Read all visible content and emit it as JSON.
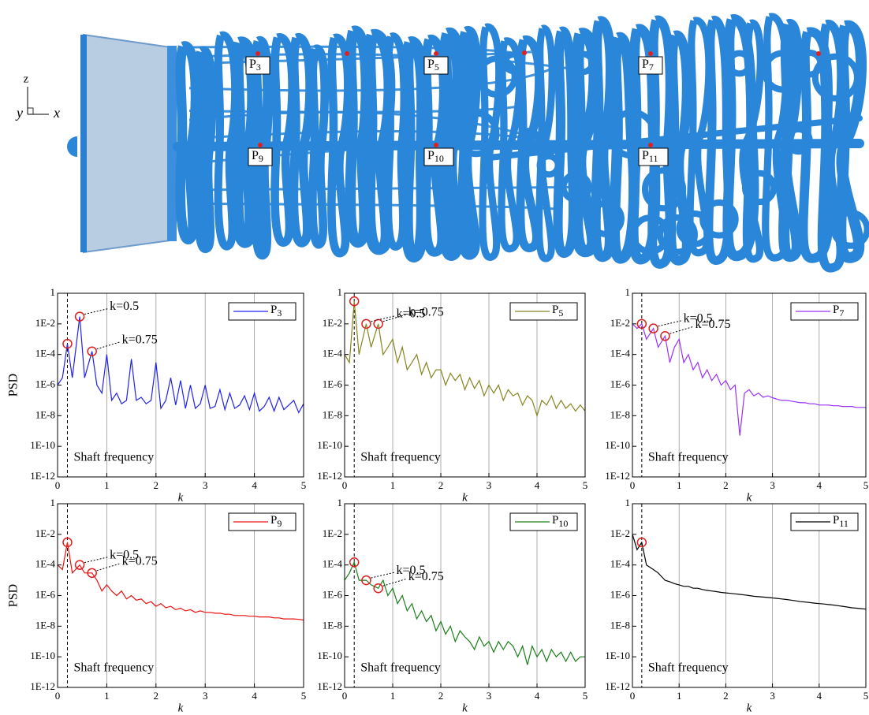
{
  "figure": {
    "axis_labels": {
      "z": "z",
      "y": "y",
      "x": "x"
    },
    "probes": [
      "P3",
      "P5",
      "P7",
      "P9",
      "P10",
      "P11"
    ]
  },
  "chart_data": [
    {
      "type": "line",
      "y_scale": "log",
      "grid": "x",
      "legend": "upper right",
      "xlabel": "k",
      "ylabel": "PSD",
      "xlim": [
        0,
        5
      ],
      "xticks": [
        0,
        1,
        2,
        3,
        4,
        5
      ],
      "ylim": [
        1e-12,
        1
      ],
      "yticks": [
        {
          "value": 1e-12,
          "label": "1E-12"
        },
        {
          "value": 1e-10,
          "label": "1E-10"
        },
        {
          "value": 1e-08,
          "label": "1E-8"
        },
        {
          "value": 1e-06,
          "label": "1E-6"
        },
        {
          "value": 0.0001,
          "label": "1E-4"
        },
        {
          "value": 0.01,
          "label": "1E-2"
        },
        1
      ],
      "reference_line": {
        "x": 0.2,
        "label": "Shaft frequency"
      },
      "annotations": [
        "k=0.5",
        "k=0.75"
      ],
      "x": [
        0,
        0.1,
        0.2,
        0.3,
        0.45,
        0.55,
        0.7,
        0.8,
        0.9,
        1.0,
        1.1,
        1.2,
        1.3,
        1.4,
        1.5,
        1.6,
        1.7,
        1.8,
        1.9,
        2.0,
        2.1,
        2.2,
        2.3,
        2.4,
        2.5,
        2.6,
        2.7,
        2.8,
        2.9,
        3.0,
        3.1,
        3.2,
        3.3,
        3.4,
        3.5,
        3.6,
        3.7,
        3.8,
        3.9,
        4.0,
        4.1,
        4.2,
        4.3,
        4.4,
        4.5,
        4.6,
        4.7,
        4.8,
        4.9,
        5.0
      ],
      "series": [
        {
          "name": "P3",
          "color": "#2222ee",
          "values": [
            1e-06,
            3e-06,
            0.0005,
            3e-06,
            0.03,
            3e-06,
            0.00016,
            1e-06,
            3e-07,
            0.0001,
            1e-07,
            3e-07,
            6e-08,
            1e-07,
            5e-05,
            1e-07,
            1.6e-07,
            6e-08,
            1e-07,
            3e-05,
            3e-08,
            1e-07,
            3e-06,
            5e-08,
            2e-06,
            3e-08,
            1e-06,
            3e-08,
            6e-08,
            1e-06,
            3e-08,
            4e-08,
            5e-07,
            2.5e-08,
            3e-07,
            3e-08,
            5e-08,
            2e-07,
            2.5e-08,
            3e-07,
            2e-08,
            4e-08,
            1.6e-07,
            2e-08,
            1.6e-07,
            2.5e-08,
            5e-08,
            1e-07,
            1.6e-08,
            6e-08
          ]
        }
      ]
    },
    {
      "type": "line",
      "y_scale": "log",
      "grid": "x",
      "legend": "upper right",
      "xlabel": "k",
      "xlim": [
        0,
        5
      ],
      "xticks": [
        0,
        1,
        2,
        3,
        4,
        5
      ],
      "ylim": [
        1e-12,
        1
      ],
      "yticks": [
        {
          "value": 1e-12,
          "label": "1E-12"
        },
        {
          "value": 1e-10,
          "label": "1E-10"
        },
        {
          "value": 1e-08,
          "label": "1E-8"
        },
        {
          "value": 1e-06,
          "label": "1E-6"
        },
        {
          "value": 0.0001,
          "label": "1E-4"
        },
        {
          "value": 0.01,
          "label": "1E-2"
        },
        1
      ],
      "reference_line": {
        "x": 0.2,
        "label": "Shaft frequency"
      },
      "annotations": [
        "k=0.5",
        "k=0.75"
      ],
      "x": [
        0,
        0.1,
        0.2,
        0.3,
        0.45,
        0.55,
        0.7,
        0.8,
        0.9,
        1.0,
        1.1,
        1.2,
        1.3,
        1.4,
        1.5,
        1.6,
        1.7,
        1.8,
        1.9,
        2.0,
        2.1,
        2.2,
        2.3,
        2.4,
        2.5,
        2.6,
        2.7,
        2.8,
        2.9,
        3.0,
        3.1,
        3.2,
        3.3,
        3.4,
        3.5,
        3.6,
        3.7,
        3.8,
        3.9,
        4.0,
        4.1,
        4.2,
        4.3,
        4.4,
        4.5,
        4.6,
        4.7,
        4.8,
        4.9,
        5.0
      ],
      "series": [
        {
          "name": "P5",
          "color": "#858520",
          "values": [
            0.0001,
            3e-05,
            0.3,
            0.0001,
            0.01,
            0.0003,
            0.01,
            0.0001,
            0.0003,
            0.001,
            3e-05,
            0.0003,
            1e-05,
            3e-05,
            0.0001,
            5e-06,
            3e-05,
            3e-06,
            1e-05,
            1e-05,
            1e-06,
            6e-06,
            2e-06,
            5e-06,
            5e-07,
            3e-06,
            6e-07,
            2e-06,
            2e-07,
            1e-06,
            3e-07,
            1e-06,
            1e-07,
            5e-07,
            2e-07,
            3e-07,
            5e-08,
            2e-07,
            1e-07,
            1e-08,
            1e-07,
            5e-08,
            2e-07,
            3e-08,
            1e-07,
            3e-08,
            6e-08,
            2e-08,
            5e-08,
            2e-08
          ]
        }
      ]
    },
    {
      "type": "line",
      "y_scale": "log",
      "grid": "x",
      "legend": "upper right",
      "xlabel": "k",
      "xlim": [
        0,
        5
      ],
      "xticks": [
        0,
        1,
        2,
        3,
        4,
        5
      ],
      "ylim": [
        1e-12,
        1
      ],
      "yticks": [
        {
          "value": 1e-12,
          "label": "1E-12"
        },
        {
          "value": 1e-10,
          "label": "1E-10"
        },
        {
          "value": 1e-08,
          "label": "1E-8"
        },
        {
          "value": 1e-06,
          "label": "1E-6"
        },
        {
          "value": 0.0001,
          "label": "1E-4"
        },
        {
          "value": 0.01,
          "label": "1E-2"
        },
        1
      ],
      "reference_line": {
        "x": 0.2,
        "label": "Shaft frequency"
      },
      "annotations": [
        "k=0.5",
        "k=0.75"
      ],
      "x": [
        0,
        0.1,
        0.2,
        0.3,
        0.45,
        0.55,
        0.7,
        0.8,
        0.9,
        1.0,
        1.1,
        1.2,
        1.3,
        1.4,
        1.5,
        1.6,
        1.7,
        1.8,
        1.9,
        2.0,
        2.1,
        2.2,
        2.3,
        2.4,
        2.5,
        2.6,
        2.7,
        2.8,
        2.9,
        3.0,
        3.1,
        3.2,
        3.3,
        3.4,
        3.5,
        3.6,
        3.7,
        3.8,
        3.9,
        4.0,
        4.1,
        4.2,
        4.3,
        4.4,
        4.5,
        4.6,
        4.7,
        4.8,
        4.9,
        5.0
      ],
      "series": [
        {
          "name": "P7",
          "color": "#9b30ff",
          "values": [
            0.01,
            0.005,
            0.01,
            0.001,
            0.005,
            0.0003,
            0.0016,
            3e-05,
            0.0003,
            0.001,
            3e-05,
            0.0001,
            1e-05,
            3e-05,
            3e-06,
            1e-05,
            2e-06,
            5e-06,
            1e-06,
            2e-06,
            5e-07,
            1e-06,
            5e-10,
            3e-07,
            5e-07,
            2e-07,
            3e-07,
            1.6e-07,
            2e-07,
            1.5e-07,
            1.2e-07,
            1e-07,
            1e-07,
            9e-08,
            8e-08,
            7e-08,
            7e-08,
            6e-08,
            6e-08,
            5e-08,
            5e-08,
            5e-08,
            4.5e-08,
            4.5e-08,
            4e-08,
            4e-08,
            4e-08,
            3.5e-08,
            3.5e-08,
            3.5e-08
          ]
        }
      ]
    },
    {
      "type": "line",
      "y_scale": "log",
      "grid": "x",
      "legend": "upper right",
      "xlabel": "k",
      "ylabel": "PSD",
      "xlim": [
        0,
        5
      ],
      "xticks": [
        0,
        1,
        2,
        3,
        4,
        5
      ],
      "ylim": [
        1e-12,
        1
      ],
      "yticks": [
        {
          "value": 1e-12,
          "label": "1E-12"
        },
        {
          "value": 1e-10,
          "label": "1E-10"
        },
        {
          "value": 1e-08,
          "label": "1E-8"
        },
        {
          "value": 1e-06,
          "label": "1E-6"
        },
        {
          "value": 0.0001,
          "label": "1E-4"
        },
        {
          "value": 0.01,
          "label": "1E-2"
        },
        1
      ],
      "reference_line": {
        "x": 0.2,
        "label": "Shaft frequency"
      },
      "annotations": [
        "k=0.5",
        "k=0.75"
      ],
      "x": [
        0,
        0.1,
        0.2,
        0.3,
        0.45,
        0.55,
        0.7,
        0.8,
        0.9,
        1.0,
        1.1,
        1.2,
        1.3,
        1.4,
        1.5,
        1.6,
        1.7,
        1.8,
        1.9,
        2.0,
        2.1,
        2.2,
        2.3,
        2.4,
        2.5,
        2.6,
        2.7,
        2.8,
        2.9,
        3.0,
        3.1,
        3.2,
        3.3,
        3.4,
        3.5,
        3.6,
        3.7,
        3.8,
        3.9,
        4.0,
        4.1,
        4.2,
        4.3,
        4.4,
        4.5,
        4.6,
        4.7,
        4.8,
        4.9,
        5.0
      ],
      "series": [
        {
          "name": "P9",
          "color": "#ee1111",
          "values": [
            0.0001,
            5e-05,
            0.003,
            3e-05,
            0.0001,
            3e-05,
            3e-05,
            1e-05,
            2e-06,
            5e-06,
            2e-06,
            1e-06,
            2e-06,
            6e-07,
            1e-06,
            5e-07,
            6e-07,
            3e-07,
            4e-07,
            2e-07,
            3e-07,
            1.6e-07,
            2e-07,
            1.2e-07,
            1.5e-07,
            1e-07,
            1.2e-07,
            8e-08,
            1e-07,
            8e-08,
            8e-08,
            7e-08,
            7e-08,
            6e-08,
            6e-08,
            5e-08,
            5e-08,
            5e-08,
            4.5e-08,
            4.5e-08,
            4e-08,
            4e-08,
            4e-08,
            3.5e-08,
            3.5e-08,
            3e-08,
            3e-08,
            3e-08,
            2.8e-08,
            2.5e-08
          ]
        }
      ]
    },
    {
      "type": "line",
      "y_scale": "log",
      "grid": "x",
      "legend": "upper right",
      "xlabel": "k",
      "xlim": [
        0,
        5
      ],
      "xticks": [
        0,
        1,
        2,
        3,
        4,
        5
      ],
      "ylim": [
        1e-12,
        1
      ],
      "yticks": [
        {
          "value": 1e-12,
          "label": "1E-12"
        },
        {
          "value": 1e-10,
          "label": "1E-10"
        },
        {
          "value": 1e-08,
          "label": "1E-8"
        },
        {
          "value": 1e-06,
          "label": "1E-6"
        },
        {
          "value": 0.0001,
          "label": "1E-4"
        },
        {
          "value": 0.01,
          "label": "1E-2"
        },
        1
      ],
      "reference_line": {
        "x": 0.2,
        "label": "Shaft frequency"
      },
      "annotations": [
        "k=0.5",
        "k=0.75"
      ],
      "x": [
        0,
        0.1,
        0.2,
        0.3,
        0.45,
        0.55,
        0.7,
        0.8,
        0.9,
        1.0,
        1.1,
        1.2,
        1.3,
        1.4,
        1.5,
        1.6,
        1.7,
        1.8,
        1.9,
        2.0,
        2.1,
        2.2,
        2.3,
        2.4,
        2.5,
        2.6,
        2.7,
        2.8,
        2.9,
        3.0,
        3.1,
        3.2,
        3.3,
        3.4,
        3.5,
        3.6,
        3.7,
        3.8,
        3.9,
        4.0,
        4.1,
        4.2,
        4.3,
        4.4,
        4.5,
        4.6,
        4.7,
        4.8,
        4.9,
        5.0
      ],
      "series": [
        {
          "name": "P10",
          "color": "#1a7f1a",
          "values": [
            1e-05,
            3e-05,
            0.00015,
            1e-05,
            1e-05,
            5e-06,
            3e-06,
            1e-05,
            1e-06,
            3e-06,
            3e-07,
            1e-06,
            1e-07,
            3e-07,
            3e-08,
            1e-07,
            2e-08,
            5e-08,
            5e-09,
            2e-08,
            3e-09,
            1e-08,
            1e-09,
            5e-09,
            2e-09,
            1e-09,
            3e-10,
            2e-09,
            5e-10,
            1e-09,
            2e-10,
            1e-09,
            3e-10,
            1e-09,
            5e-10,
            1e-10,
            5e-10,
            3e-11,
            5e-10,
            1e-10,
            3e-10,
            5e-11,
            3e-10,
            1e-10,
            2e-10,
            5e-11,
            2e-10,
            5e-11,
            1e-10,
            1e-10
          ]
        }
      ]
    },
    {
      "type": "line",
      "y_scale": "log",
      "grid": "x",
      "legend": "upper right",
      "xlabel": "k",
      "xlim": [
        0,
        5
      ],
      "xticks": [
        0,
        1,
        2,
        3,
        4,
        5
      ],
      "ylim": [
        1e-12,
        1
      ],
      "yticks": [
        {
          "value": 1e-12,
          "label": "1E-12"
        },
        {
          "value": 1e-10,
          "label": "1E-10"
        },
        {
          "value": 1e-08,
          "label": "1E-8"
        },
        {
          "value": 1e-06,
          "label": "1E-6"
        },
        {
          "value": 0.0001,
          "label": "1E-4"
        },
        {
          "value": 0.01,
          "label": "1E-2"
        },
        1
      ],
      "reference_line": {
        "x": 0.2,
        "label": "Shaft frequency"
      },
      "x": [
        0,
        0.1,
        0.2,
        0.3,
        0.45,
        0.55,
        0.7,
        0.8,
        0.9,
        1.0,
        1.1,
        1.2,
        1.3,
        1.4,
        1.5,
        1.6,
        1.7,
        1.8,
        1.9,
        2.0,
        2.1,
        2.2,
        2.3,
        2.4,
        2.5,
        2.6,
        2.7,
        2.8,
        2.9,
        3.0,
        3.1,
        3.2,
        3.3,
        3.4,
        3.5,
        3.6,
        3.7,
        3.8,
        3.9,
        4.0,
        4.1,
        4.2,
        4.3,
        4.4,
        4.5,
        4.6,
        4.7,
        4.8,
        4.9,
        5.0
      ],
      "series": [
        {
          "name": "P11",
          "color": "#000000",
          "values": [
            0.01,
            0.001,
            0.003,
            0.0001,
            5e-05,
            3e-05,
            1e-05,
            8e-06,
            6e-06,
            5e-06,
            4e-06,
            4e-06,
            3e-06,
            3e-06,
            2.5e-06,
            2.2e-06,
            2e-06,
            1.8e-06,
            1.6e-06,
            1.5e-06,
            1.4e-06,
            1.3e-06,
            1.2e-06,
            1.1e-06,
            1e-06,
            9e-07,
            8.5e-07,
            8e-07,
            7.5e-07,
            7e-07,
            6.5e-07,
            6e-07,
            5.5e-07,
            5e-07,
            4.5e-07,
            4e-07,
            3.8e-07,
            3.5e-07,
            3.2e-07,
            3e-07,
            2.8e-07,
            2.6e-07,
            2.4e-07,
            2.2e-07,
            2e-07,
            1.8e-07,
            1.6e-07,
            1.5e-07,
            1.4e-07,
            1.3e-07
          ]
        }
      ]
    }
  ]
}
